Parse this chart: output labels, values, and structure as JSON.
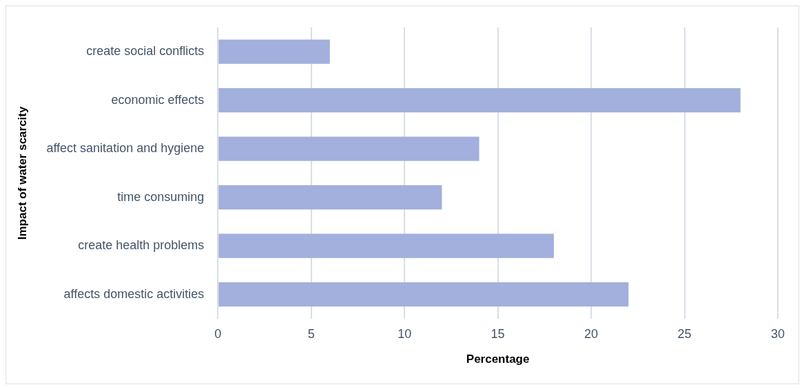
{
  "chart_data": {
    "type": "bar",
    "orientation": "horizontal",
    "xlabel": "Percentage",
    "ylabel": "Impact of water scarcity",
    "categories": [
      "create social conflicts",
      "economic effects",
      "affect sanitation and hygiene",
      "time consuming",
      "create health problems",
      "affects domestic activities"
    ],
    "values": [
      6,
      28,
      14,
      12,
      18,
      22
    ],
    "color": "#a3afdc",
    "xlim": [
      0,
      30
    ],
    "xticks": [
      0,
      5,
      10,
      15,
      20,
      25,
      30
    ],
    "grid": "x",
    "legend": false
  }
}
